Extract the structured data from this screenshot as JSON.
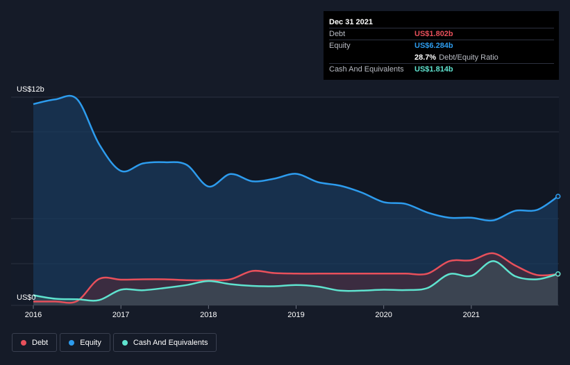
{
  "tooltip": {
    "date": "Dec 31 2021",
    "rows": [
      {
        "name": "Debt",
        "value": "US$1.802b",
        "color": "#e8505b"
      },
      {
        "name": "Equity",
        "value": "US$6.284b",
        "color": "#2d9cee"
      },
      {
        "name": "",
        "value": "28.7%",
        "suffix": "Debt/Equity Ratio",
        "color": "#ffffff"
      },
      {
        "name": "Cash And Equivalents",
        "value": "US$1.814b",
        "color": "#5fe3cf"
      }
    ]
  },
  "legend": [
    {
      "label": "Debt",
      "color": "#e8505b"
    },
    {
      "label": "Equity",
      "color": "#2d9cee"
    },
    {
      "label": "Cash And Equivalents",
      "color": "#5fe3cf"
    }
  ],
  "chart_data": {
    "type": "area",
    "y_top_label": "US$12b",
    "y_bottom_label": "US$0",
    "ylim": [
      0,
      12
    ],
    "xlim": [
      2016,
      2022
    ],
    "x_ticks": [
      "2016",
      "2017",
      "2018",
      "2019",
      "2020",
      "2021"
    ],
    "grid": true,
    "legend_position": "bottom-left",
    "series": [
      {
        "name": "Equity",
        "color": "#2d9cee",
        "points": [
          [
            2016.0,
            11.6
          ],
          [
            2016.25,
            11.87
          ],
          [
            2016.5,
            11.88
          ],
          [
            2016.75,
            9.3
          ],
          [
            2017.0,
            7.75
          ],
          [
            2017.25,
            8.18
          ],
          [
            2017.5,
            8.25
          ],
          [
            2017.75,
            8.1
          ],
          [
            2018.0,
            6.85
          ],
          [
            2018.25,
            7.57
          ],
          [
            2018.5,
            7.15
          ],
          [
            2018.75,
            7.3
          ],
          [
            2019.0,
            7.58
          ],
          [
            2019.25,
            7.1
          ],
          [
            2019.5,
            6.9
          ],
          [
            2019.75,
            6.5
          ],
          [
            2020.0,
            5.95
          ],
          [
            2020.25,
            5.85
          ],
          [
            2020.5,
            5.35
          ],
          [
            2020.75,
            5.05
          ],
          [
            2021.0,
            5.05
          ],
          [
            2021.25,
            4.9
          ],
          [
            2021.5,
            5.45
          ],
          [
            2021.75,
            5.5
          ],
          [
            2021.99,
            6.28
          ]
        ]
      },
      {
        "name": "Debt",
        "color": "#e8505b",
        "points": [
          [
            2016.0,
            0.22
          ],
          [
            2016.25,
            0.22
          ],
          [
            2016.5,
            0.25
          ],
          [
            2016.75,
            1.52
          ],
          [
            2017.0,
            1.48
          ],
          [
            2017.25,
            1.5
          ],
          [
            2017.5,
            1.5
          ],
          [
            2017.75,
            1.45
          ],
          [
            2018.0,
            1.45
          ],
          [
            2018.25,
            1.5
          ],
          [
            2018.5,
            1.98
          ],
          [
            2018.75,
            1.86
          ],
          [
            2019.0,
            1.83
          ],
          [
            2019.25,
            1.83
          ],
          [
            2019.5,
            1.83
          ],
          [
            2019.75,
            1.83
          ],
          [
            2020.0,
            1.83
          ],
          [
            2020.25,
            1.83
          ],
          [
            2020.5,
            1.83
          ],
          [
            2020.75,
            2.55
          ],
          [
            2021.0,
            2.6
          ],
          [
            2021.25,
            3.0
          ],
          [
            2021.5,
            2.3
          ],
          [
            2021.75,
            1.75
          ],
          [
            2021.99,
            1.8
          ]
        ]
      },
      {
        "name": "Cash And Equivalents",
        "color": "#5fe3cf",
        "points": [
          [
            2016.0,
            0.58
          ],
          [
            2016.25,
            0.38
          ],
          [
            2016.5,
            0.35
          ],
          [
            2016.75,
            0.3
          ],
          [
            2017.0,
            0.9
          ],
          [
            2017.25,
            0.87
          ],
          [
            2017.5,
            1.0
          ],
          [
            2017.75,
            1.17
          ],
          [
            2018.0,
            1.4
          ],
          [
            2018.25,
            1.22
          ],
          [
            2018.5,
            1.12
          ],
          [
            2018.75,
            1.1
          ],
          [
            2019.0,
            1.17
          ],
          [
            2019.25,
            1.08
          ],
          [
            2019.5,
            0.85
          ],
          [
            2019.75,
            0.85
          ],
          [
            2020.0,
            0.9
          ],
          [
            2020.25,
            0.88
          ],
          [
            2020.5,
            1.0
          ],
          [
            2020.75,
            1.8
          ],
          [
            2021.0,
            1.7
          ],
          [
            2021.25,
            2.55
          ],
          [
            2021.5,
            1.68
          ],
          [
            2021.75,
            1.5
          ],
          [
            2021.99,
            1.81
          ]
        ]
      }
    ]
  }
}
